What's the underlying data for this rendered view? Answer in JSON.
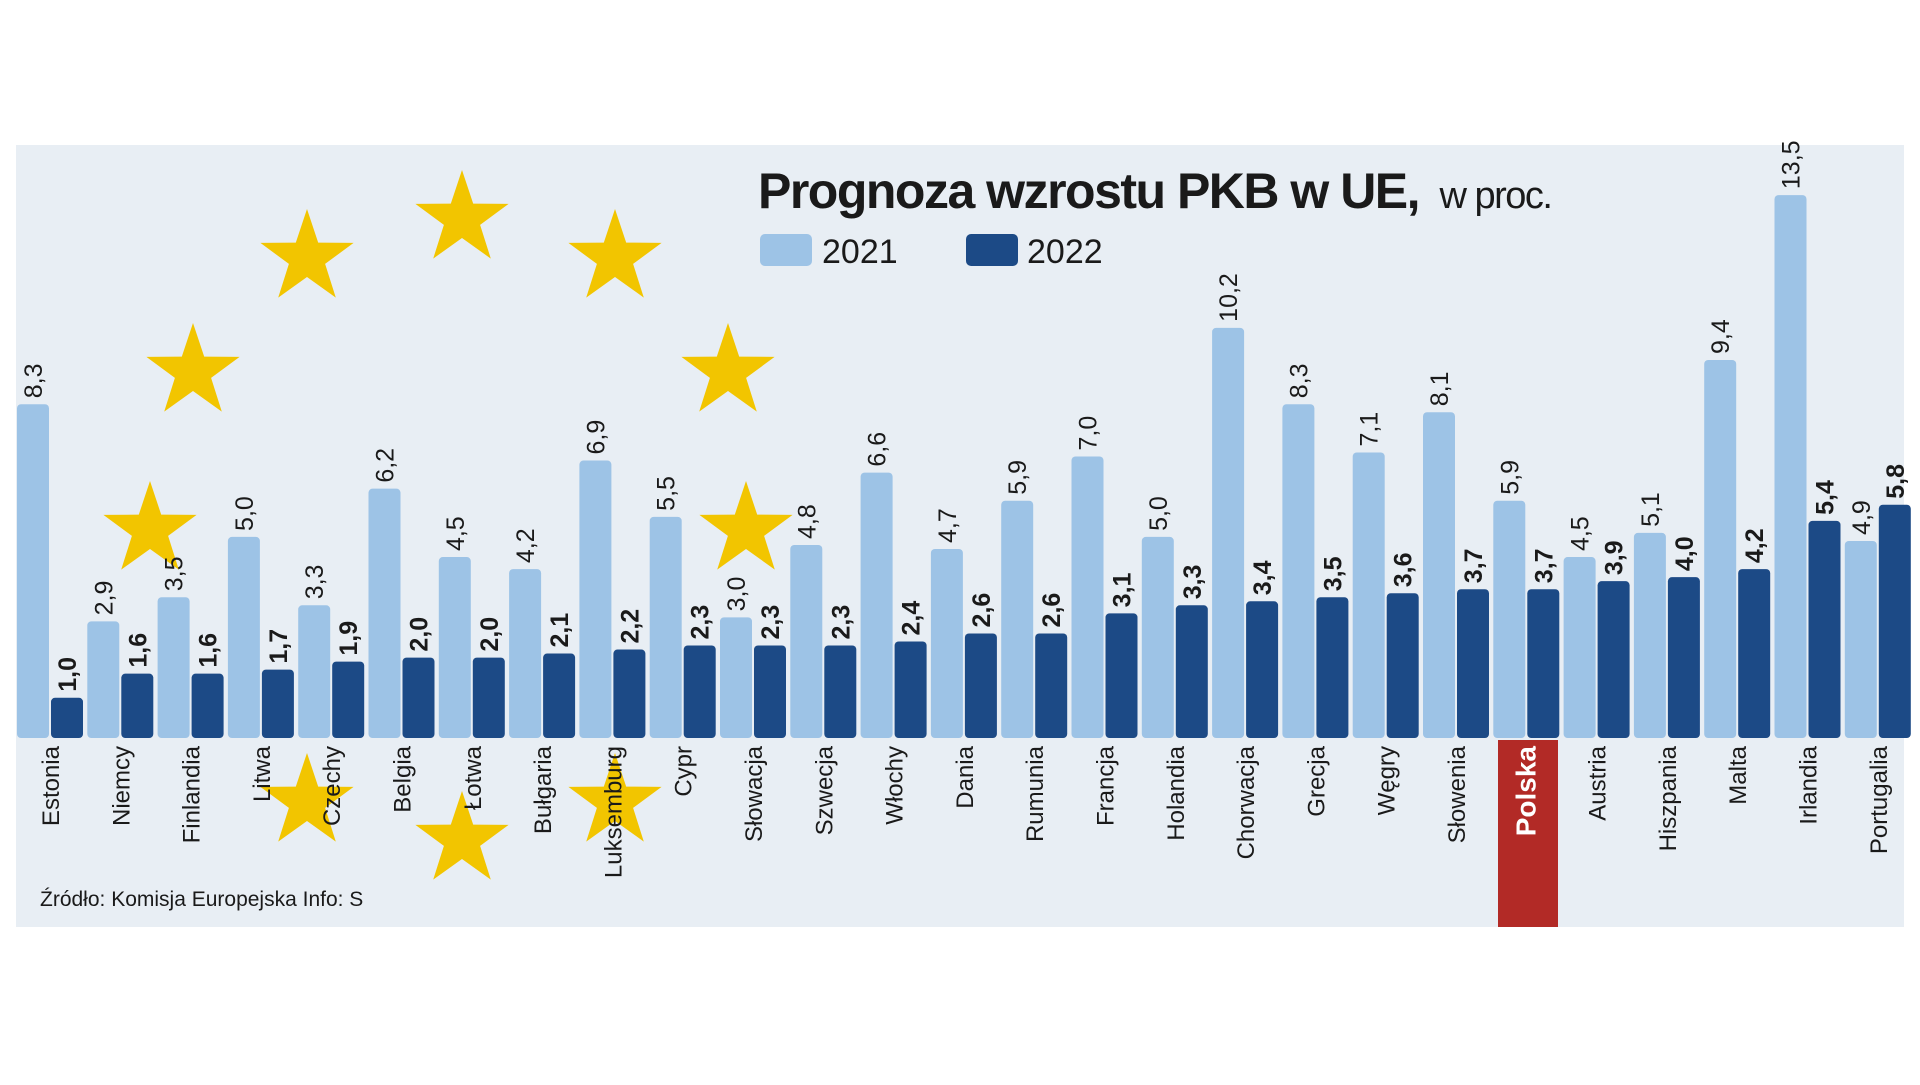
{
  "title": {
    "main": "Prognoza wzrostu PKB w UE,",
    "unit": "w proc."
  },
  "legend": [
    {
      "label": "2021",
      "color": "#9dc3e6"
    },
    {
      "label": "2022",
      "color": "#1c4a86"
    }
  ],
  "source": "Źródło: Komisja Europejska  Info: S",
  "colors": {
    "panel_bg": "#e8eef4",
    "bar_2021": "#9dc3e6",
    "bar_2022": "#1c4a86",
    "star": "#f2c500",
    "highlight": "#b22a26",
    "text": "#1a1a1a"
  },
  "chart_data": {
    "type": "bar",
    "title": "Prognoza wzrostu PKB w UE, w proc.",
    "xlabel": "",
    "ylabel": "",
    "ylim": [
      0,
      14
    ],
    "highlight_category": "Polska",
    "categories": [
      "Estonia",
      "Niemcy",
      "Finlandia",
      "Litwa",
      "Czechy",
      "Belgia",
      "Łotwa",
      "Bułgaria",
      "Luksemburg",
      "Cypr",
      "Słowacja",
      "Szwecja",
      "Włochy",
      "Dania",
      "Rumunia",
      "Francja",
      "Holandia",
      "Chorwacja",
      "Grecja",
      "Węgry",
      "Słowenia",
      "Polska",
      "Austria",
      "Hiszpania",
      "Malta",
      "Irlandia",
      "Portugalia"
    ],
    "series": [
      {
        "name": "2021",
        "values": [
          8.3,
          2.9,
          3.5,
          5.0,
          3.3,
          6.2,
          4.5,
          4.2,
          6.9,
          5.5,
          3.0,
          4.8,
          6.6,
          4.7,
          5.9,
          7.0,
          5.0,
          10.2,
          8.3,
          7.1,
          8.1,
          5.9,
          4.5,
          5.1,
          9.4,
          13.5,
          4.9
        ],
        "labels": [
          "8,3",
          "2,9",
          "3,5",
          "5,0",
          "3,3",
          "6,2",
          "4,5",
          "4,2",
          "6,9",
          "5,5",
          "3,0",
          "4,8",
          "6,6",
          "4,7",
          "5,9",
          "7,0",
          "5,0",
          "10,2",
          "8,3",
          "7,1",
          "8,1",
          "5,9",
          "4,5",
          "5,1",
          "9,4",
          "13,5",
          "4,9"
        ]
      },
      {
        "name": "2022",
        "values": [
          1.0,
          1.6,
          1.6,
          1.7,
          1.9,
          2.0,
          2.0,
          2.1,
          2.2,
          2.3,
          2.3,
          2.3,
          2.4,
          2.6,
          2.6,
          3.1,
          3.3,
          3.4,
          3.5,
          3.6,
          3.7,
          3.7,
          3.9,
          4.0,
          4.2,
          5.4,
          5.8
        ],
        "labels": [
          "1,0",
          "1,6",
          "1,6",
          "1,7",
          "1,9",
          "2,0",
          "2,0",
          "2,1",
          "2,2",
          "2,3",
          "2,3",
          "2,3",
          "2,4",
          "2,6",
          "2,6",
          "3,1",
          "3,3",
          "3,4",
          "3,5",
          "3,6",
          "3,7",
          "3,7",
          "3,9",
          "4,0",
          "4,2",
          "5,4",
          "5,8"
        ]
      }
    ]
  }
}
